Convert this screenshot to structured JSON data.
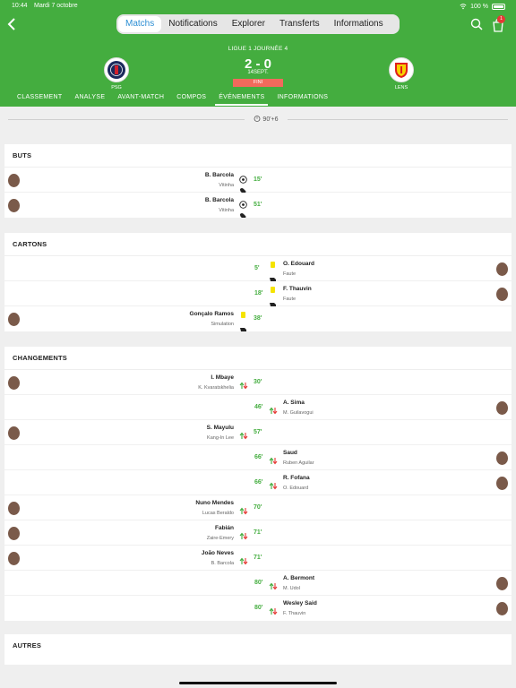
{
  "status_bar": {
    "time": "10:44",
    "date": "Mardi 7 octobre",
    "battery": "100 %"
  },
  "nav": {
    "tabs": [
      {
        "label": "Matchs",
        "active": true
      },
      {
        "label": "Notifications",
        "active": false
      },
      {
        "label": "Explorer",
        "active": false
      },
      {
        "label": "Transferts",
        "active": false
      },
      {
        "label": "Informations",
        "active": false
      }
    ],
    "cart_count": "1"
  },
  "match": {
    "league": "LIGUE 1 JOURNÉE 4",
    "home": "PSG",
    "away": "LENS",
    "score": "2 - 0",
    "date": "14SEPT.",
    "status": "FINI"
  },
  "subtabs": [
    {
      "label": "CLASSEMENT",
      "active": false
    },
    {
      "label": "ANALYSE",
      "active": false
    },
    {
      "label": "AVANT-MATCH",
      "active": false
    },
    {
      "label": "COMPOS",
      "active": false
    },
    {
      "label": "ÉVÉNEMENTS",
      "active": true
    },
    {
      "label": "INFORMATIONS",
      "active": false
    }
  ],
  "timeline": {
    "time": "90'+6"
  },
  "sections": {
    "goals": {
      "title": "BUTS",
      "rows": [
        {
          "side": "home",
          "player": "B. Barcola",
          "sub": "Vitinha",
          "minute": "15'",
          "icon": "goal"
        },
        {
          "side": "home",
          "player": "B. Barcola",
          "sub": "Vitinha",
          "minute": "51'",
          "icon": "goal"
        }
      ]
    },
    "cards": {
      "title": "CARTONS",
      "rows": [
        {
          "side": "away",
          "player": "O. Edouard",
          "sub": "Faute",
          "minute": "5'",
          "icon": "yellow"
        },
        {
          "side": "away",
          "player": "F. Thauvin",
          "sub": "Faute",
          "minute": "18'",
          "icon": "yellow"
        },
        {
          "side": "home",
          "player": "Gonçalo Ramos",
          "sub": "Simulation",
          "minute": "38'",
          "icon": "yellow"
        }
      ]
    },
    "subs": {
      "title": "CHANGEMENTS",
      "rows": [
        {
          "side": "home",
          "player": "I. Mbaye",
          "sub": "K. Kvaratskhelia",
          "minute": "30'",
          "icon": "sub"
        },
        {
          "side": "away",
          "player": "A. Sima",
          "sub": "M. Guilavogui",
          "minute": "46'",
          "icon": "sub"
        },
        {
          "side": "home",
          "player": "S. Mayulu",
          "sub": "Kang-In Lee",
          "minute": "57'",
          "icon": "sub"
        },
        {
          "side": "away",
          "player": "Saud",
          "sub": "Ruben Aguilar",
          "minute": "66'",
          "icon": "sub"
        },
        {
          "side": "away",
          "player": "R. Fofana",
          "sub": "O. Edouard",
          "minute": "66'",
          "icon": "sub"
        },
        {
          "side": "home",
          "player": "Nuno Mendes",
          "sub": "Lucas Beraldo",
          "minute": "70'",
          "icon": "sub"
        },
        {
          "side": "home",
          "player": "Fabián",
          "sub": "Zaire-Emery",
          "minute": "71'",
          "icon": "sub"
        },
        {
          "side": "home",
          "player": "João Neves",
          "sub": "B. Barcola",
          "minute": "71'",
          "icon": "sub"
        },
        {
          "side": "away",
          "player": "A. Bermont",
          "sub": "M. Udol",
          "minute": "80'",
          "icon": "sub"
        },
        {
          "side": "away",
          "player": "Wesley Said",
          "sub": "F. Thauvin",
          "minute": "80'",
          "icon": "sub"
        }
      ]
    },
    "others": {
      "title": "AUTRES"
    }
  },
  "colors": {
    "header_green": "#44ad3f",
    "accent_blue": "#2e8fd4",
    "status_red": "#f26a5c",
    "yellow_card": "#f5e300"
  }
}
